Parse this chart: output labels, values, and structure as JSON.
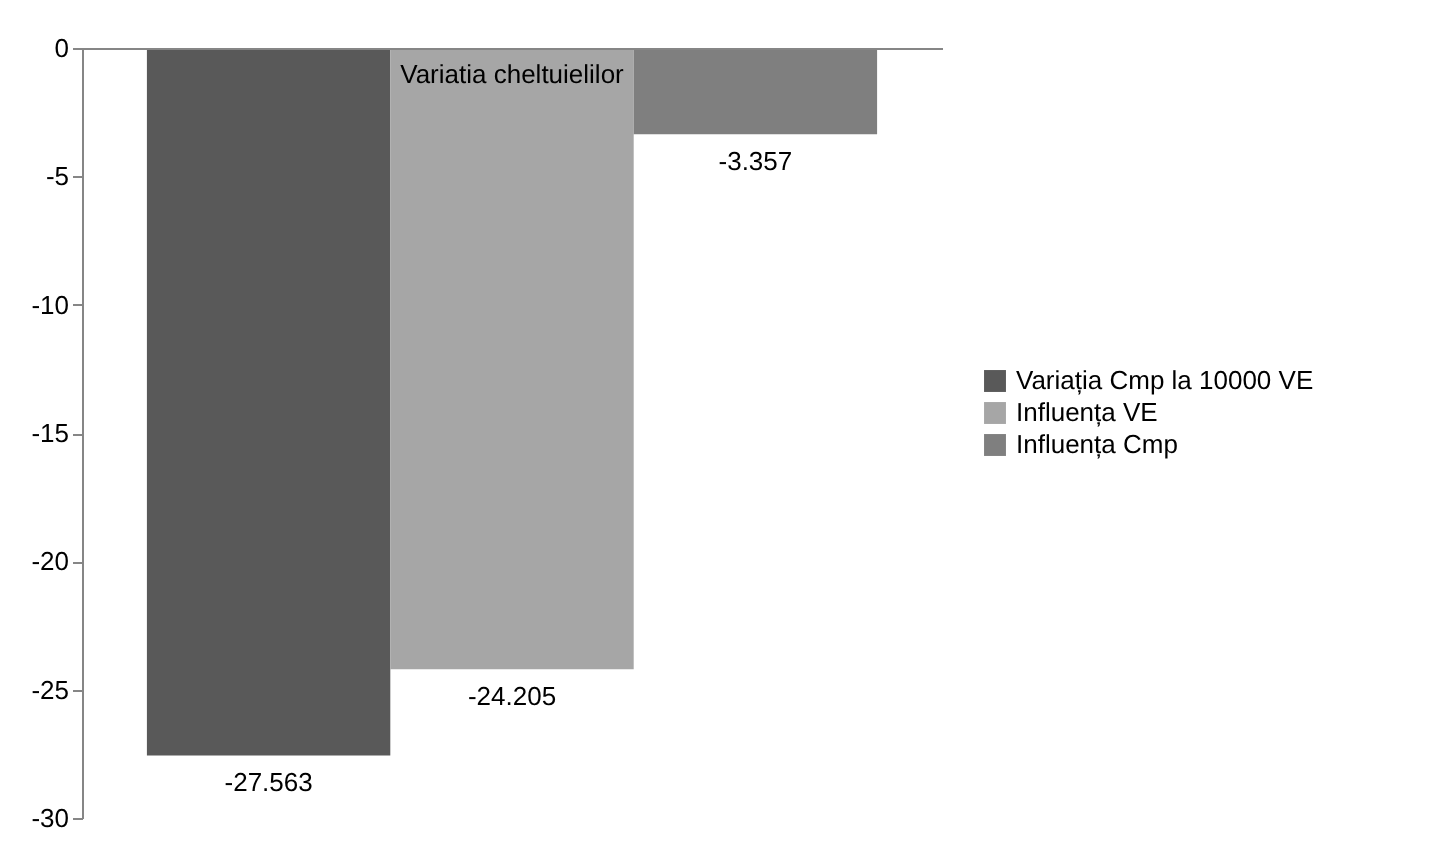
{
  "chart_data": {
    "type": "bar",
    "categories": [
      "Variatia cheltuielilor"
    ],
    "series": [
      {
        "name": "Variația Cmp la 10000 VE",
        "color": "#595959",
        "values": [
          -27.563
        ]
      },
      {
        "name": "Influența VE",
        "color": "#a6a6a6",
        "values": [
          -24.205
        ]
      },
      {
        "name": "Influența Cmp",
        "color": "#7f7f7f",
        "values": [
          -3.357
        ]
      }
    ],
    "ylim": [
      -30,
      0
    ],
    "yticks": [
      -30,
      -25,
      -20,
      -15,
      -10,
      -5,
      0
    ],
    "grid": false,
    "legend": "right",
    "data_labels": true
  }
}
